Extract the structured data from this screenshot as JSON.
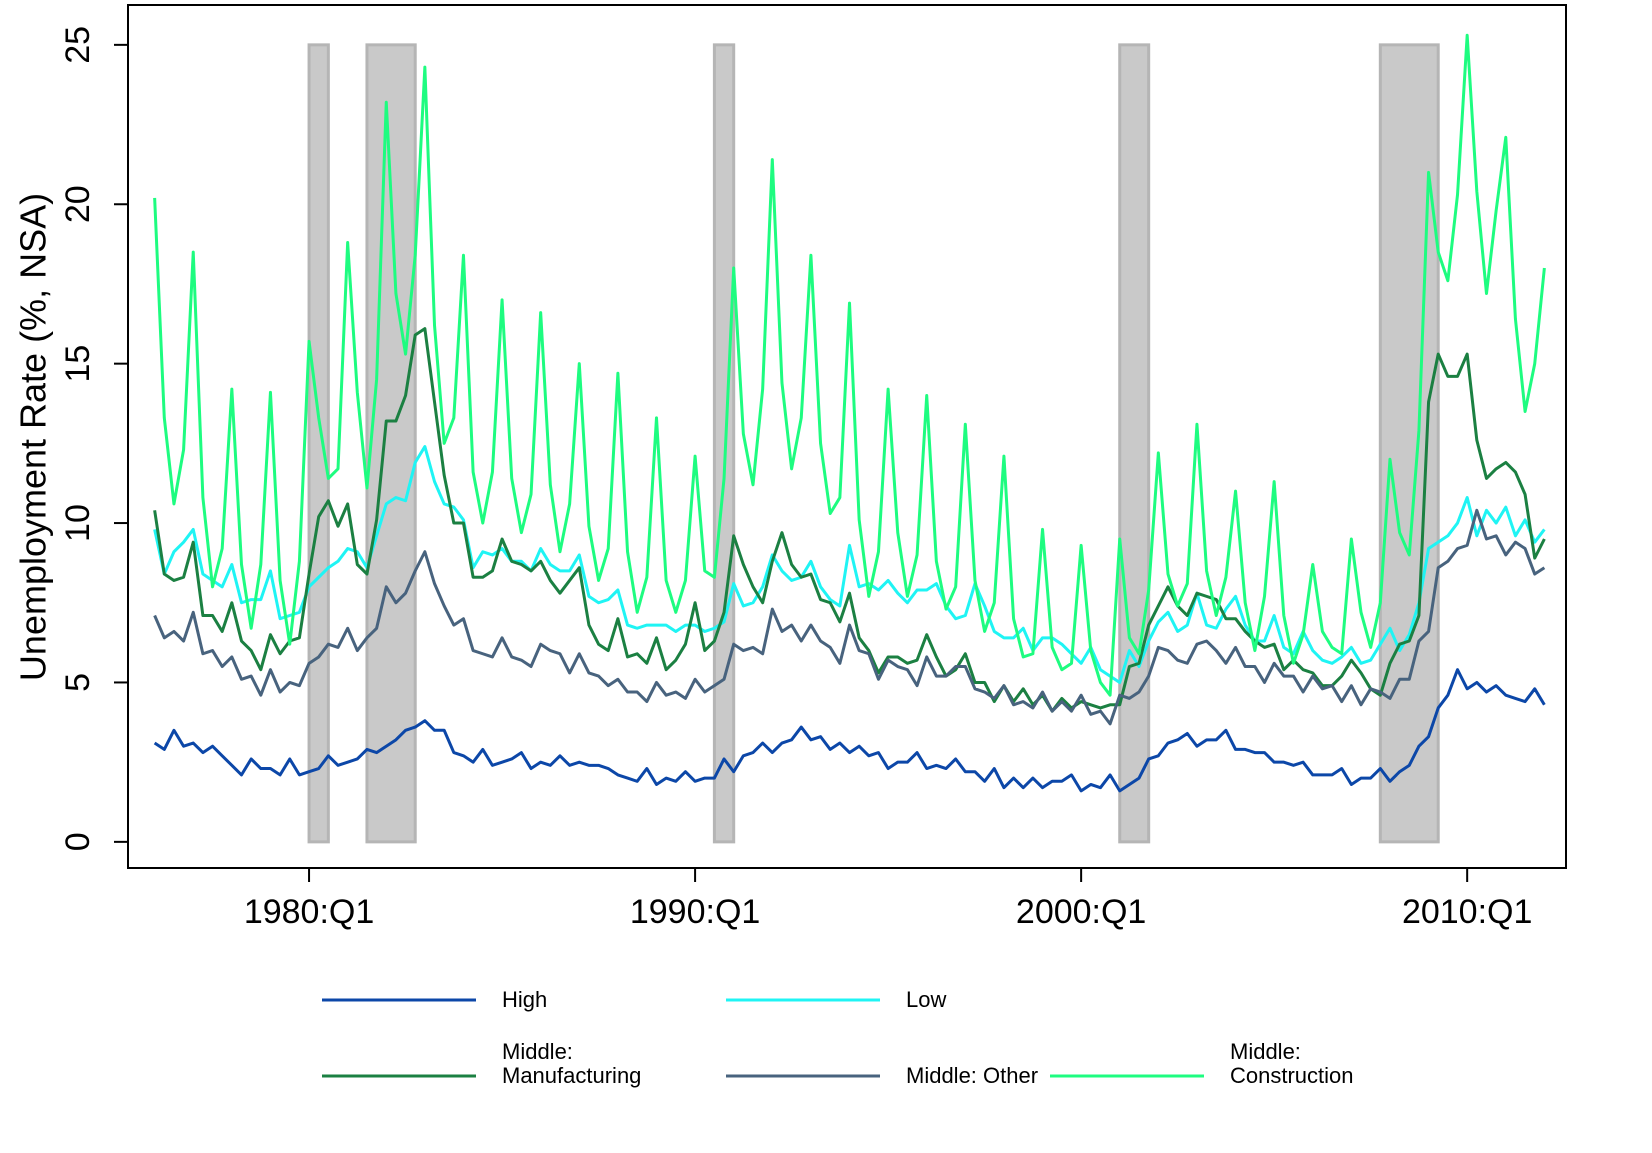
{
  "chart_data": {
    "type": "line",
    "y_label": "Unemployment Rate (%, NSA)",
    "x": [
      1976,
      1976.25,
      1976.5,
      1976.75,
      1977,
      1977.25,
      1977.5,
      1977.75,
      1978,
      1978.25,
      1978.5,
      1978.75,
      1979,
      1979.25,
      1979.5,
      1979.75,
      1980,
      1980.25,
      1980.5,
      1980.75,
      1981,
      1981.25,
      1981.5,
      1981.75,
      1982,
      1982.25,
      1982.5,
      1982.75,
      1983,
      1983.25,
      1983.5,
      1983.75,
      1984,
      1984.25,
      1984.5,
      1984.75,
      1985,
      1985.25,
      1985.5,
      1985.75,
      1986,
      1986.25,
      1986.5,
      1986.75,
      1987,
      1987.25,
      1987.5,
      1987.75,
      1988,
      1988.25,
      1988.5,
      1988.75,
      1989,
      1989.25,
      1989.5,
      1989.75,
      1990,
      1990.25,
      1990.5,
      1990.75,
      1991,
      1991.25,
      1991.5,
      1991.75,
      1992,
      1992.25,
      1992.5,
      1992.75,
      1993,
      1993.25,
      1993.5,
      1993.75,
      1994,
      1994.25,
      1994.5,
      1994.75,
      1995,
      1995.25,
      1995.5,
      1995.75,
      1996,
      1996.25,
      1996.5,
      1996.75,
      1997,
      1997.25,
      1997.5,
      1997.75,
      1998,
      1998.25,
      1998.5,
      1998.75,
      1999,
      1999.25,
      1999.5,
      1999.75,
      2000,
      2000.25,
      2000.5,
      2000.75,
      2001,
      2001.25,
      2001.5,
      2001.75,
      2002,
      2002.25,
      2002.5,
      2002.75,
      2003,
      2003.25,
      2003.5,
      2003.75,
      2004,
      2004.25,
      2004.5,
      2004.75,
      2005,
      2005.25,
      2005.5,
      2005.75,
      2006,
      2006.25,
      2006.5,
      2006.75,
      2007,
      2007.25,
      2007.5,
      2007.75,
      2008,
      2008.25,
      2008.5,
      2008.75,
      2009,
      2009.25,
      2009.5,
      2009.75,
      2010,
      2010.25,
      2010.5,
      2010.75,
      2011,
      2011.25,
      2011.5,
      2011.75,
      2012
    ],
    "series": [
      {
        "name": "High",
        "color": "#0c47a8",
        "values": [
          3.1,
          2.9,
          3.5,
          3.0,
          3.1,
          2.8,
          3.0,
          2.7,
          2.4,
          2.1,
          2.6,
          2.3,
          2.3,
          2.1,
          2.6,
          2.1,
          2.2,
          2.3,
          2.7,
          2.4,
          2.5,
          2.6,
          2.9,
          2.8,
          3.0,
          3.2,
          3.5,
          3.6,
          3.8,
          3.5,
          3.5,
          2.8,
          2.7,
          2.5,
          2.9,
          2.4,
          2.5,
          2.6,
          2.8,
          2.3,
          2.5,
          2.4,
          2.7,
          2.4,
          2.5,
          2.4,
          2.4,
          2.3,
          2.1,
          2.0,
          1.9,
          2.3,
          1.8,
          2.0,
          1.9,
          2.2,
          1.9,
          2.0,
          2.0,
          2.6,
          2.2,
          2.7,
          2.8,
          3.1,
          2.8,
          3.1,
          3.2,
          3.6,
          3.2,
          3.3,
          2.9,
          3.1,
          2.8,
          3.0,
          2.7,
          2.8,
          2.3,
          2.5,
          2.5,
          2.8,
          2.3,
          2.4,
          2.3,
          2.6,
          2.2,
          2.2,
          1.9,
          2.3,
          1.7,
          2.0,
          1.7,
          2.0,
          1.7,
          1.9,
          1.9,
          2.1,
          1.6,
          1.8,
          1.7,
          2.1,
          1.6,
          1.8,
          2.0,
          2.6,
          2.7,
          3.1,
          3.2,
          3.4,
          3.0,
          3.2,
          3.2,
          3.5,
          2.9,
          2.9,
          2.8,
          2.8,
          2.5,
          2.5,
          2.4,
          2.5,
          2.1,
          2.1,
          2.1,
          2.3,
          1.8,
          2.0,
          2.0,
          2.3,
          1.9,
          2.2,
          2.4,
          3.0,
          3.3,
          4.2,
          4.6,
          5.4,
          4.8,
          5.0,
          4.7,
          4.9,
          4.6,
          4.5,
          4.4,
          4.8,
          4.3
        ]
      },
      {
        "name": "Low",
        "color": "#1ff4f4",
        "values": [
          9.8,
          8.4,
          9.1,
          9.4,
          9.8,
          8.4,
          8.2,
          8.0,
          8.7,
          7.5,
          7.6,
          7.6,
          8.5,
          7.0,
          7.1,
          7.2,
          8.0,
          8.3,
          8.6,
          8.8,
          9.2,
          9.1,
          8.6,
          9.6,
          10.6,
          10.8,
          10.7,
          11.9,
          12.4,
          11.3,
          10.6,
          10.5,
          10.1,
          8.6,
          9.1,
          9.0,
          9.2,
          8.8,
          8.8,
          8.5,
          9.2,
          8.7,
          8.5,
          8.5,
          9.0,
          7.7,
          7.5,
          7.6,
          7.9,
          6.8,
          6.7,
          6.8,
          6.8,
          6.8,
          6.6,
          6.8,
          6.8,
          6.6,
          6.7,
          6.9,
          8.1,
          7.4,
          7.5,
          8.0,
          9.0,
          8.5,
          8.2,
          8.3,
          8.8,
          8.0,
          7.6,
          7.4,
          9.3,
          8.0,
          8.1,
          7.9,
          8.2,
          7.8,
          7.5,
          7.9,
          7.9,
          8.1,
          7.4,
          7.0,
          7.1,
          8.1,
          7.4,
          6.6,
          6.4,
          6.4,
          6.7,
          6.0,
          6.4,
          6.4,
          6.2,
          5.9,
          5.6,
          6.1,
          5.4,
          5.2,
          5.0,
          6.0,
          5.5,
          6.3,
          6.9,
          7.2,
          6.6,
          6.8,
          7.8,
          6.8,
          6.7,
          7.3,
          7.7,
          6.8,
          6.3,
          6.3,
          7.1,
          6.1,
          5.9,
          6.6,
          6.0,
          5.7,
          5.6,
          5.8,
          6.1,
          5.6,
          5.7,
          6.2,
          6.7,
          6.0,
          6.5,
          7.5,
          9.2,
          9.4,
          9.6,
          10.0,
          10.8,
          9.6,
          10.4,
          10.0,
          10.5,
          9.6,
          10.1,
          9.4,
          9.8
        ]
      },
      {
        "name": "Middle: Manufacturing",
        "color": "#1b8042",
        "values": [
          10.4,
          8.4,
          8.2,
          8.3,
          9.4,
          7.1,
          7.1,
          6.6,
          7.5,
          6.3,
          6.0,
          5.4,
          6.5,
          5.9,
          6.3,
          6.4,
          8.4,
          10.2,
          10.7,
          9.9,
          10.6,
          8.7,
          8.4,
          10.1,
          13.2,
          13.2,
          14.0,
          15.9,
          16.1,
          13.8,
          11.5,
          10.0,
          10.0,
          8.3,
          8.3,
          8.5,
          9.5,
          8.8,
          8.7,
          8.5,
          8.8,
          8.2,
          7.8,
          8.2,
          8.6,
          6.8,
          6.2,
          6.0,
          7.0,
          5.8,
          5.9,
          5.6,
          6.4,
          5.4,
          5.7,
          6.2,
          7.5,
          6.0,
          6.3,
          7.2,
          9.6,
          8.7,
          8.0,
          7.5,
          8.8,
          9.7,
          8.7,
          8.3,
          8.4,
          7.6,
          7.5,
          6.9,
          7.8,
          6.4,
          6.0,
          5.3,
          5.8,
          5.8,
          5.6,
          5.7,
          6.5,
          5.8,
          5.2,
          5.4,
          5.9,
          5.0,
          5.0,
          4.4,
          4.9,
          4.4,
          4.8,
          4.3,
          4.6,
          4.1,
          4.5,
          4.2,
          4.4,
          4.3,
          4.2,
          4.3,
          4.3,
          5.5,
          5.6,
          6.8,
          7.4,
          8.0,
          7.4,
          7.1,
          7.8,
          7.7,
          7.6,
          7.0,
          7.0,
          6.6,
          6.3,
          6.1,
          6.2,
          5.4,
          5.7,
          5.4,
          5.3,
          4.9,
          4.9,
          5.2,
          5.7,
          5.3,
          4.8,
          4.6,
          5.6,
          6.2,
          6.3,
          7.1,
          13.8,
          15.3,
          14.6,
          14.6,
          15.3,
          12.6,
          11.4,
          11.7,
          11.9,
          11.6,
          10.9,
          8.9,
          9.5
        ]
      },
      {
        "name": "Middle: Other",
        "color": "#48637e",
        "values": [
          7.1,
          6.4,
          6.6,
          6.3,
          7.2,
          5.9,
          6.0,
          5.5,
          5.8,
          5.1,
          5.2,
          4.6,
          5.4,
          4.7,
          5.0,
          4.9,
          5.6,
          5.8,
          6.2,
          6.1,
          6.7,
          6.0,
          6.4,
          6.7,
          8.0,
          7.5,
          7.8,
          8.5,
          9.1,
          8.1,
          7.4,
          6.8,
          7.0,
          6.0,
          5.9,
          5.8,
          6.4,
          5.8,
          5.7,
          5.5,
          6.2,
          6.0,
          5.9,
          5.3,
          5.9,
          5.3,
          5.2,
          4.9,
          5.1,
          4.7,
          4.7,
          4.4,
          5.0,
          4.6,
          4.7,
          4.5,
          5.1,
          4.7,
          4.9,
          5.1,
          6.2,
          6.0,
          6.1,
          5.9,
          7.3,
          6.6,
          6.8,
          6.3,
          6.8,
          6.3,
          6.1,
          5.6,
          6.8,
          6.0,
          5.9,
          5.1,
          5.7,
          5.5,
          5.4,
          4.9,
          5.8,
          5.2,
          5.2,
          5.5,
          5.5,
          4.8,
          4.7,
          4.5,
          4.9,
          4.3,
          4.4,
          4.2,
          4.7,
          4.1,
          4.4,
          4.1,
          4.6,
          4.0,
          4.1,
          3.7,
          4.6,
          4.5,
          4.7,
          5.2,
          6.1,
          6.0,
          5.7,
          5.6,
          6.2,
          6.3,
          6.0,
          5.6,
          6.1,
          5.5,
          5.5,
          5.0,
          5.6,
          5.2,
          5.2,
          4.7,
          5.2,
          4.8,
          4.9,
          4.4,
          4.9,
          4.3,
          4.8,
          4.7,
          4.5,
          5.1,
          5.1,
          6.3,
          6.6,
          8.6,
          8.8,
          9.2,
          9.3,
          10.4,
          9.5,
          9.6,
          9.0,
          9.4,
          9.2,
          8.4,
          8.6
        ]
      },
      {
        "name": "Middle: Construction",
        "color": "#1efc80",
        "values": [
          20.2,
          13.3,
          10.6,
          12.3,
          18.5,
          10.8,
          8.0,
          9.2,
          14.2,
          8.7,
          6.7,
          8.7,
          14.1,
          8.2,
          6.2,
          8.8,
          15.7,
          13.3,
          11.4,
          11.7,
          18.8,
          14.1,
          11.1,
          14.5,
          23.2,
          17.2,
          15.3,
          18.4,
          24.3,
          16.2,
          12.5,
          13.3,
          18.4,
          11.6,
          10.0,
          11.6,
          17.0,
          11.4,
          9.7,
          10.9,
          16.6,
          11.2,
          9.1,
          10.6,
          15.0,
          9.9,
          8.2,
          9.2,
          14.7,
          9.1,
          7.2,
          8.3,
          13.3,
          8.2,
          7.2,
          8.2,
          12.1,
          8.5,
          8.3,
          11.4,
          18.0,
          12.8,
          11.2,
          14.2,
          21.4,
          14.4,
          11.7,
          13.3,
          18.4,
          12.5,
          10.3,
          10.8,
          16.9,
          10.1,
          7.7,
          9.1,
          14.2,
          9.7,
          7.7,
          9.0,
          14.0,
          8.8,
          7.3,
          8.0,
          13.1,
          8.2,
          6.6,
          7.5,
          12.1,
          7.0,
          5.8,
          5.9,
          9.8,
          6.1,
          5.4,
          5.6,
          9.3,
          6.0,
          5.0,
          4.6,
          9.5,
          6.4,
          5.9,
          7.9,
          12.2,
          8.4,
          7.4,
          8.1,
          13.1,
          8.5,
          7.1,
          8.3,
          11.0,
          7.5,
          6.0,
          7.7,
          11.3,
          7.1,
          5.6,
          6.5,
          8.7,
          6.6,
          6.1,
          5.9,
          9.5,
          7.2,
          6.1,
          7.5,
          12.0,
          9.7,
          9.0,
          12.9,
          21.0,
          18.5,
          17.6,
          20.3,
          25.3,
          20.4,
          17.2,
          19.8,
          22.1,
          16.4,
          13.5,
          15.0,
          18.0
        ]
      }
    ],
    "recessions": [
      [
        1980,
        1980.5
      ],
      [
        1981.5,
        1982.75
      ],
      [
        1990.5,
        1991
      ],
      [
        2001,
        2001.75
      ],
      [
        2007.75,
        2009.25
      ]
    ],
    "recession_color": "#c9c9c9",
    "xlim": [
      1975.31,
      2012.56
    ],
    "ylim": [
      -0.82,
      26.25
    ],
    "xticks": [
      {
        "value": 1980,
        "label": "1980:Q1"
      },
      {
        "value": 1990,
        "label": "1990:Q1"
      },
      {
        "value": 2000,
        "label": "2000:Q1"
      },
      {
        "value": 2010,
        "label": "2010:Q1"
      }
    ],
    "yticks": [
      0,
      5,
      10,
      15,
      20,
      25
    ],
    "grid": false
  }
}
